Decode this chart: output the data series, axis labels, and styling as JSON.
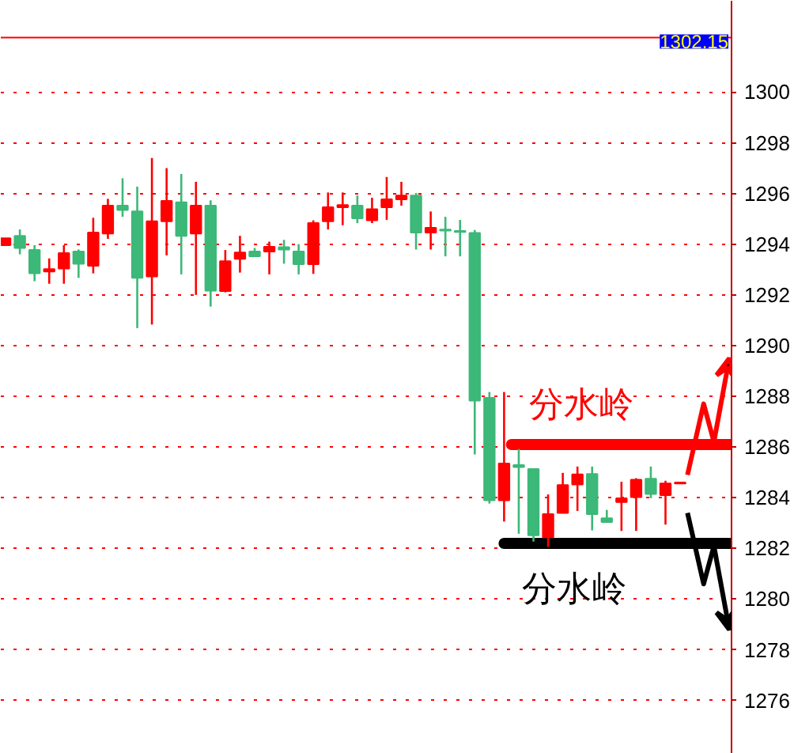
{
  "chart_data": {
    "type": "candlestick",
    "categories": [
      null,
      null,
      null,
      null,
      null,
      null,
      null,
      null,
      null,
      null,
      null,
      null,
      null,
      null,
      null,
      null,
      null,
      null,
      null,
      null,
      null,
      null,
      null,
      null,
      null,
      null,
      null,
      null,
      null,
      null,
      null,
      null,
      null,
      null,
      null,
      null,
      null,
      null,
      null,
      null,
      null,
      null,
      null,
      null,
      null,
      null,
      null
    ],
    "ohlc": [
      [
        1293.96,
        1294.23,
        1293.96,
        1294.23
      ],
      [
        1294.33,
        1294.58,
        1293.6,
        1293.85
      ],
      [
        1293.77,
        1293.96,
        1292.54,
        1292.85
      ],
      [
        1292.92,
        1293.44,
        1292.44,
        1293.02
      ],
      [
        1293.04,
        1293.96,
        1292.44,
        1293.65
      ],
      [
        1293.71,
        1293.79,
        1292.67,
        1293.23
      ],
      [
        1293.15,
        1295.04,
        1292.85,
        1294.46
      ],
      [
        1294.42,
        1295.79,
        1294.21,
        1295.52
      ],
      [
        1295.52,
        1296.6,
        1295.08,
        1295.35
      ],
      [
        1295.29,
        1296.27,
        1290.69,
        1292.67
      ],
      [
        1292.73,
        1297.4,
        1290.83,
        1294.9
      ],
      [
        1294.9,
        1297.0,
        1293.56,
        1295.71
      ],
      [
        1295.65,
        1296.77,
        1292.81,
        1294.33
      ],
      [
        1294.42,
        1296.46,
        1292.0,
        1295.52
      ],
      [
        1295.52,
        1295.73,
        1291.54,
        1292.17
      ],
      [
        1292.15,
        1293.77,
        1292.1,
        1293.33
      ],
      [
        1293.42,
        1294.33,
        1292.88,
        1293.67
      ],
      [
        1293.71,
        1293.85,
        1293.52,
        1293.52
      ],
      [
        1293.71,
        1294.1,
        1292.81,
        1293.9
      ],
      [
        1293.88,
        1294.17,
        1293.23,
        1293.79
      ],
      [
        1293.71,
        1294.0,
        1292.81,
        1293.21
      ],
      [
        1293.21,
        1294.94,
        1292.83,
        1294.83
      ],
      [
        1294.9,
        1296.04,
        1294.58,
        1295.46
      ],
      [
        1295.46,
        1296.04,
        1294.75,
        1295.54
      ],
      [
        1295.52,
        1295.92,
        1294.83,
        1295.02
      ],
      [
        1294.94,
        1295.83,
        1294.83,
        1295.38
      ],
      [
        1295.46,
        1296.65,
        1294.96,
        1295.77
      ],
      [
        1295.77,
        1296.46,
        1295.52,
        1295.92
      ],
      [
        1295.92,
        1296.02,
        1293.79,
        1294.46
      ],
      [
        1294.46,
        1295.29,
        1293.79,
        1294.65
      ],
      [
        1294.58,
        1295.08,
        1293.52,
        1294.54
      ],
      [
        1294.52,
        1294.96,
        1293.52,
        1294.48
      ],
      [
        1294.44,
        1294.56,
        1285.71,
        1287.83
      ],
      [
        1287.94,
        1288.17,
        1283.77,
        1283.9
      ],
      [
        1283.9,
        1288.17,
        1283.06,
        1285.35
      ],
      [
        1285.29,
        1285.92,
        1282.58,
        1285.21
      ],
      [
        1285.13,
        1285.13,
        1282.27,
        1282.52
      ],
      [
        1282.44,
        1284.13,
        1282.06,
        1283.35
      ],
      [
        1283.4,
        1284.98,
        1283.4,
        1284.5
      ],
      [
        1284.52,
        1285.23,
        1283.48,
        1284.92
      ],
      [
        1284.94,
        1285.23,
        1282.71,
        1283.35
      ],
      [
        1283.19,
        1283.52,
        1283.04,
        1283.04
      ],
      [
        1283.83,
        1284.63,
        1282.69,
        1283.98
      ],
      [
        1284.02,
        1284.77,
        1282.69,
        1284.71
      ],
      [
        1284.75,
        1285.23,
        1283.98,
        1284.15
      ],
      [
        1284.1,
        1284.67,
        1282.94,
        1284.56
      ],
      [
        1284.56,
        1284.6,
        1284.56,
        1284.6
      ]
    ],
    "colors": [
      "#ff0000",
      "#3cb878",
      "#3cb878",
      "#ff0000",
      "#ff0000",
      "#3cb878",
      "#ff0000",
      "#ff0000",
      "#3cb878",
      "#3cb878",
      "#ff0000",
      "#ff0000",
      "#3cb878",
      "#ff0000",
      "#3cb878",
      "#ff0000",
      "#ff0000",
      "#3cb878",
      "#ff0000",
      "#3cb878",
      "#3cb878",
      "#ff0000",
      "#ff0000",
      "#ff0000",
      "#3cb878",
      "#ff0000",
      "#ff0000",
      "#ff0000",
      "#3cb878",
      "#ff0000",
      "#3cb878",
      "#3cb878",
      "#3cb878",
      "#3cb878",
      "#ff0000",
      "#3cb878",
      "#3cb878",
      "#ff0000",
      "#ff0000",
      "#ff0000",
      "#3cb878",
      "#3cb878",
      "#ff0000",
      "#ff0000",
      "#3cb878",
      "#ff0000",
      "#ff0000"
    ],
    "ylim": [
      1273.9,
      1303.6
    ],
    "yticks": [
      1276,
      1278,
      1280,
      1282,
      1284,
      1286,
      1288,
      1290,
      1292,
      1294,
      1296,
      1298,
      1300
    ],
    "grid": "y",
    "tick_labels": "y",
    "ref_lines": [
      {
        "axis": "y",
        "value": 1302.15,
        "label": "1302.15",
        "color": "#ff0000"
      },
      {
        "axis": "y",
        "value": 1286.1,
        "label": "分水岭",
        "color": "#ff0000"
      },
      {
        "axis": "y",
        "value": 1282.2,
        "label": "分水岭",
        "color": "#000000"
      }
    ]
  }
}
